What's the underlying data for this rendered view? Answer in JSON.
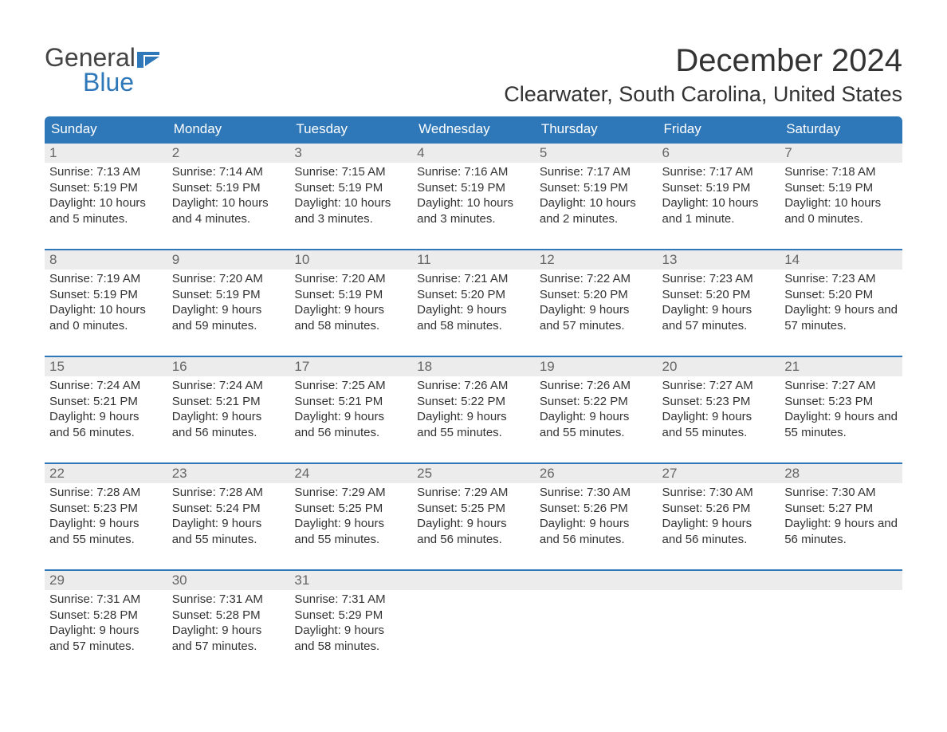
{
  "brand": {
    "word1": "General",
    "word2": "Blue",
    "accent": "#2e77b8",
    "text_color": "#444444"
  },
  "title": "December 2024",
  "location": "Clearwater, South Carolina, United States",
  "header_bg": "#2e77b8",
  "header_fg": "#ffffff",
  "daynum_bg": "#ececec",
  "row_border": "#2e77b8",
  "body_text_color": "#333333",
  "days_of_week": [
    "Sunday",
    "Monday",
    "Tuesday",
    "Wednesday",
    "Thursday",
    "Friday",
    "Saturday"
  ],
  "weeks": [
    [
      {
        "n": 1,
        "sunrise": "7:13 AM",
        "sunset": "5:19 PM",
        "daylight": "10 hours and 5 minutes."
      },
      {
        "n": 2,
        "sunrise": "7:14 AM",
        "sunset": "5:19 PM",
        "daylight": "10 hours and 4 minutes."
      },
      {
        "n": 3,
        "sunrise": "7:15 AM",
        "sunset": "5:19 PM",
        "daylight": "10 hours and 3 minutes."
      },
      {
        "n": 4,
        "sunrise": "7:16 AM",
        "sunset": "5:19 PM",
        "daylight": "10 hours and 3 minutes."
      },
      {
        "n": 5,
        "sunrise": "7:17 AM",
        "sunset": "5:19 PM",
        "daylight": "10 hours and 2 minutes."
      },
      {
        "n": 6,
        "sunrise": "7:17 AM",
        "sunset": "5:19 PM",
        "daylight": "10 hours and 1 minute."
      },
      {
        "n": 7,
        "sunrise": "7:18 AM",
        "sunset": "5:19 PM",
        "daylight": "10 hours and 0 minutes."
      }
    ],
    [
      {
        "n": 8,
        "sunrise": "7:19 AM",
        "sunset": "5:19 PM",
        "daylight": "10 hours and 0 minutes."
      },
      {
        "n": 9,
        "sunrise": "7:20 AM",
        "sunset": "5:19 PM",
        "daylight": "9 hours and 59 minutes."
      },
      {
        "n": 10,
        "sunrise": "7:20 AM",
        "sunset": "5:19 PM",
        "daylight": "9 hours and 58 minutes."
      },
      {
        "n": 11,
        "sunrise": "7:21 AM",
        "sunset": "5:20 PM",
        "daylight": "9 hours and 58 minutes."
      },
      {
        "n": 12,
        "sunrise": "7:22 AM",
        "sunset": "5:20 PM",
        "daylight": "9 hours and 57 minutes."
      },
      {
        "n": 13,
        "sunrise": "7:23 AM",
        "sunset": "5:20 PM",
        "daylight": "9 hours and 57 minutes."
      },
      {
        "n": 14,
        "sunrise": "7:23 AM",
        "sunset": "5:20 PM",
        "daylight": "9 hours and 57 minutes."
      }
    ],
    [
      {
        "n": 15,
        "sunrise": "7:24 AM",
        "sunset": "5:21 PM",
        "daylight": "9 hours and 56 minutes."
      },
      {
        "n": 16,
        "sunrise": "7:24 AM",
        "sunset": "5:21 PM",
        "daylight": "9 hours and 56 minutes."
      },
      {
        "n": 17,
        "sunrise": "7:25 AM",
        "sunset": "5:21 PM",
        "daylight": "9 hours and 56 minutes."
      },
      {
        "n": 18,
        "sunrise": "7:26 AM",
        "sunset": "5:22 PM",
        "daylight": "9 hours and 55 minutes."
      },
      {
        "n": 19,
        "sunrise": "7:26 AM",
        "sunset": "5:22 PM",
        "daylight": "9 hours and 55 minutes."
      },
      {
        "n": 20,
        "sunrise": "7:27 AM",
        "sunset": "5:23 PM",
        "daylight": "9 hours and 55 minutes."
      },
      {
        "n": 21,
        "sunrise": "7:27 AM",
        "sunset": "5:23 PM",
        "daylight": "9 hours and 55 minutes."
      }
    ],
    [
      {
        "n": 22,
        "sunrise": "7:28 AM",
        "sunset": "5:23 PM",
        "daylight": "9 hours and 55 minutes."
      },
      {
        "n": 23,
        "sunrise": "7:28 AM",
        "sunset": "5:24 PM",
        "daylight": "9 hours and 55 minutes."
      },
      {
        "n": 24,
        "sunrise": "7:29 AM",
        "sunset": "5:25 PM",
        "daylight": "9 hours and 55 minutes."
      },
      {
        "n": 25,
        "sunrise": "7:29 AM",
        "sunset": "5:25 PM",
        "daylight": "9 hours and 56 minutes."
      },
      {
        "n": 26,
        "sunrise": "7:30 AM",
        "sunset": "5:26 PM",
        "daylight": "9 hours and 56 minutes."
      },
      {
        "n": 27,
        "sunrise": "7:30 AM",
        "sunset": "5:26 PM",
        "daylight": "9 hours and 56 minutes."
      },
      {
        "n": 28,
        "sunrise": "7:30 AM",
        "sunset": "5:27 PM",
        "daylight": "9 hours and 56 minutes."
      }
    ],
    [
      {
        "n": 29,
        "sunrise": "7:31 AM",
        "sunset": "5:28 PM",
        "daylight": "9 hours and 57 minutes."
      },
      {
        "n": 30,
        "sunrise": "7:31 AM",
        "sunset": "5:28 PM",
        "daylight": "9 hours and 57 minutes."
      },
      {
        "n": 31,
        "sunrise": "7:31 AM",
        "sunset": "5:29 PM",
        "daylight": "9 hours and 58 minutes."
      },
      null,
      null,
      null,
      null
    ]
  ],
  "labels": {
    "sunrise_prefix": "Sunrise: ",
    "sunset_prefix": "Sunset: ",
    "daylight_prefix": "Daylight: "
  }
}
